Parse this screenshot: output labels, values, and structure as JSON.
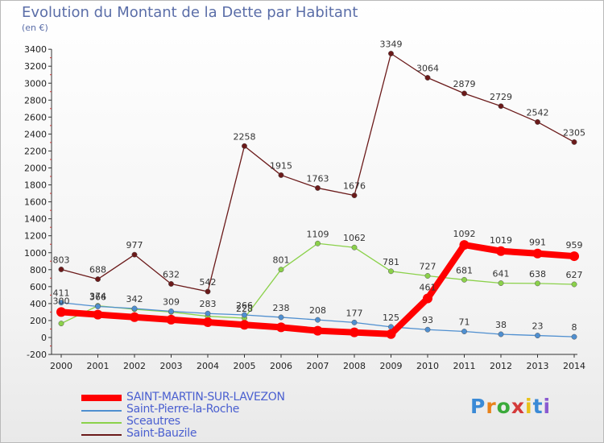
{
  "chart_data": {
    "type": "line",
    "title": "Evolution du Montant de la Dette par Habitant",
    "subtitle": "(en €)",
    "xlabel": "",
    "ylabel": "",
    "x": [
      "2000",
      "2001",
      "2002",
      "2003",
      "2004",
      "2005",
      "2006",
      "2007",
      "2008",
      "2009",
      "2010",
      "2011",
      "2012",
      "2013",
      "2014"
    ],
    "ylim": [
      -200,
      3400
    ],
    "yticks": [
      -200,
      0,
      200,
      400,
      600,
      800,
      1000,
      1200,
      1400,
      1600,
      1800,
      2000,
      2200,
      2400,
      2600,
      2800,
      3000,
      3200,
      3400
    ],
    "grid": false,
    "legend_position": "bottom-left",
    "series": [
      {
        "name": "SAINT-MARTIN-SUR-LAVEZON",
        "color": "#ff0000",
        "values": [
          300,
          270,
          240,
          210,
          180,
          150,
          120,
          80,
          60,
          40,
          461,
          1092,
          1019,
          991,
          959
        ],
        "labels": [
          "300",
          "",
          "",
          "",
          "",
          "",
          "",
          "",
          "",
          "",
          "461",
          "1092",
          "1019",
          "991",
          "959"
        ]
      },
      {
        "name": "Saint-Pierre-la-Roche",
        "color": "#4f8fd0",
        "values": [
          411,
          366,
          342,
          309,
          283,
          266,
          238,
          208,
          177,
          125,
          93,
          71,
          38,
          23,
          8
        ],
        "labels": [
          "411",
          "366",
          "342",
          "309",
          "283",
          "266",
          "238",
          "208",
          "177",
          "125",
          "93",
          "71",
          "38",
          "23",
          "8"
        ]
      },
      {
        "name": "Sceautres",
        "color": "#8bd14a",
        "values": [
          165,
          374,
          333,
          301,
          250,
          228,
          801,
          1109,
          1062,
          781,
          727,
          681,
          641,
          638,
          627
        ],
        "labels": [
          "",
          "374",
          "",
          "",
          "",
          "228",
          "801",
          "1109",
          "1062",
          "781",
          "727",
          "681",
          "641",
          "638",
          "627"
        ]
      },
      {
        "name": "Saint-Bauzile",
        "color": "#6b1a1a",
        "values": [
          803,
          688,
          977,
          632,
          542,
          2258,
          1915,
          1763,
          1676,
          3349,
          3064,
          2879,
          2729,
          2542,
          2305
        ],
        "labels": [
          "803",
          "688",
          "977",
          "632",
          "542",
          "2258",
          "1915",
          "1763",
          "1676",
          "3349",
          "3064",
          "2879",
          "2729",
          "2542",
          "2305"
        ]
      }
    ]
  },
  "brand": {
    "letters": [
      "P",
      "r",
      "o",
      "x",
      "i",
      "t",
      "i"
    ],
    "colors": [
      "#3a8ad6",
      "#e8821a",
      "#3aaa3a",
      "#d43a3a",
      "#e8c21a",
      "#3a8ad6",
      "#8a5ad0"
    ]
  }
}
